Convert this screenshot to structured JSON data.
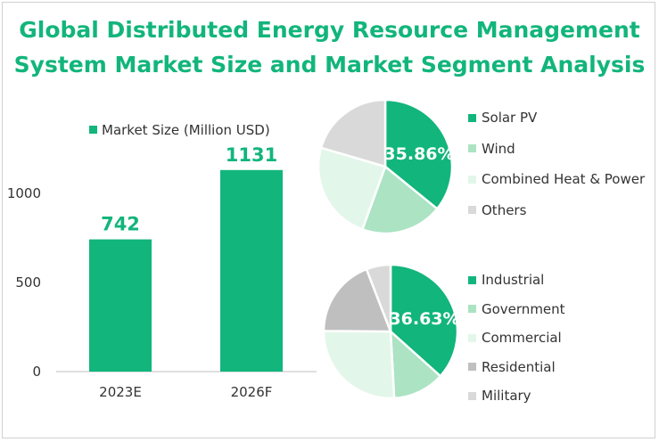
{
  "title_line1": "Global Distributed Energy Resource Management",
  "title_line2": "System Market Size and Market Segment Analysis",
  "chart_data": [
    {
      "type": "bar",
      "categories": [
        "2023E",
        "2026F"
      ],
      "series": [
        {
          "name": "Market Size (Million USD)",
          "values": [
            742,
            1131
          ]
        }
      ],
      "ylim": [
        0,
        1200
      ],
      "yticks": [
        0,
        500,
        1000
      ],
      "color": "#12b57c",
      "data_labels": [
        "742",
        "1131"
      ]
    },
    {
      "type": "pie",
      "labels": [
        "Solar PV",
        "Wind",
        "Combined Heat & Power",
        "Others"
      ],
      "values": [
        35.86,
        19.7,
        24.0,
        20.44
      ],
      "colors": [
        "#12b57c",
        "#abe3c3",
        "#e3f6ea",
        "#d9d9d9"
      ],
      "data_label": "35.86%"
    },
    {
      "type": "pie",
      "labels": [
        "Industrial",
        "Government",
        "Commercial",
        "Residential",
        "Military"
      ],
      "values": [
        36.63,
        12.5,
        26.0,
        19.0,
        5.87
      ],
      "colors": [
        "#12b57c",
        "#abe3c3",
        "#e3f6ea",
        "#bfbfbf",
        "#d9d9d9"
      ],
      "data_label": "36.63%"
    }
  ]
}
